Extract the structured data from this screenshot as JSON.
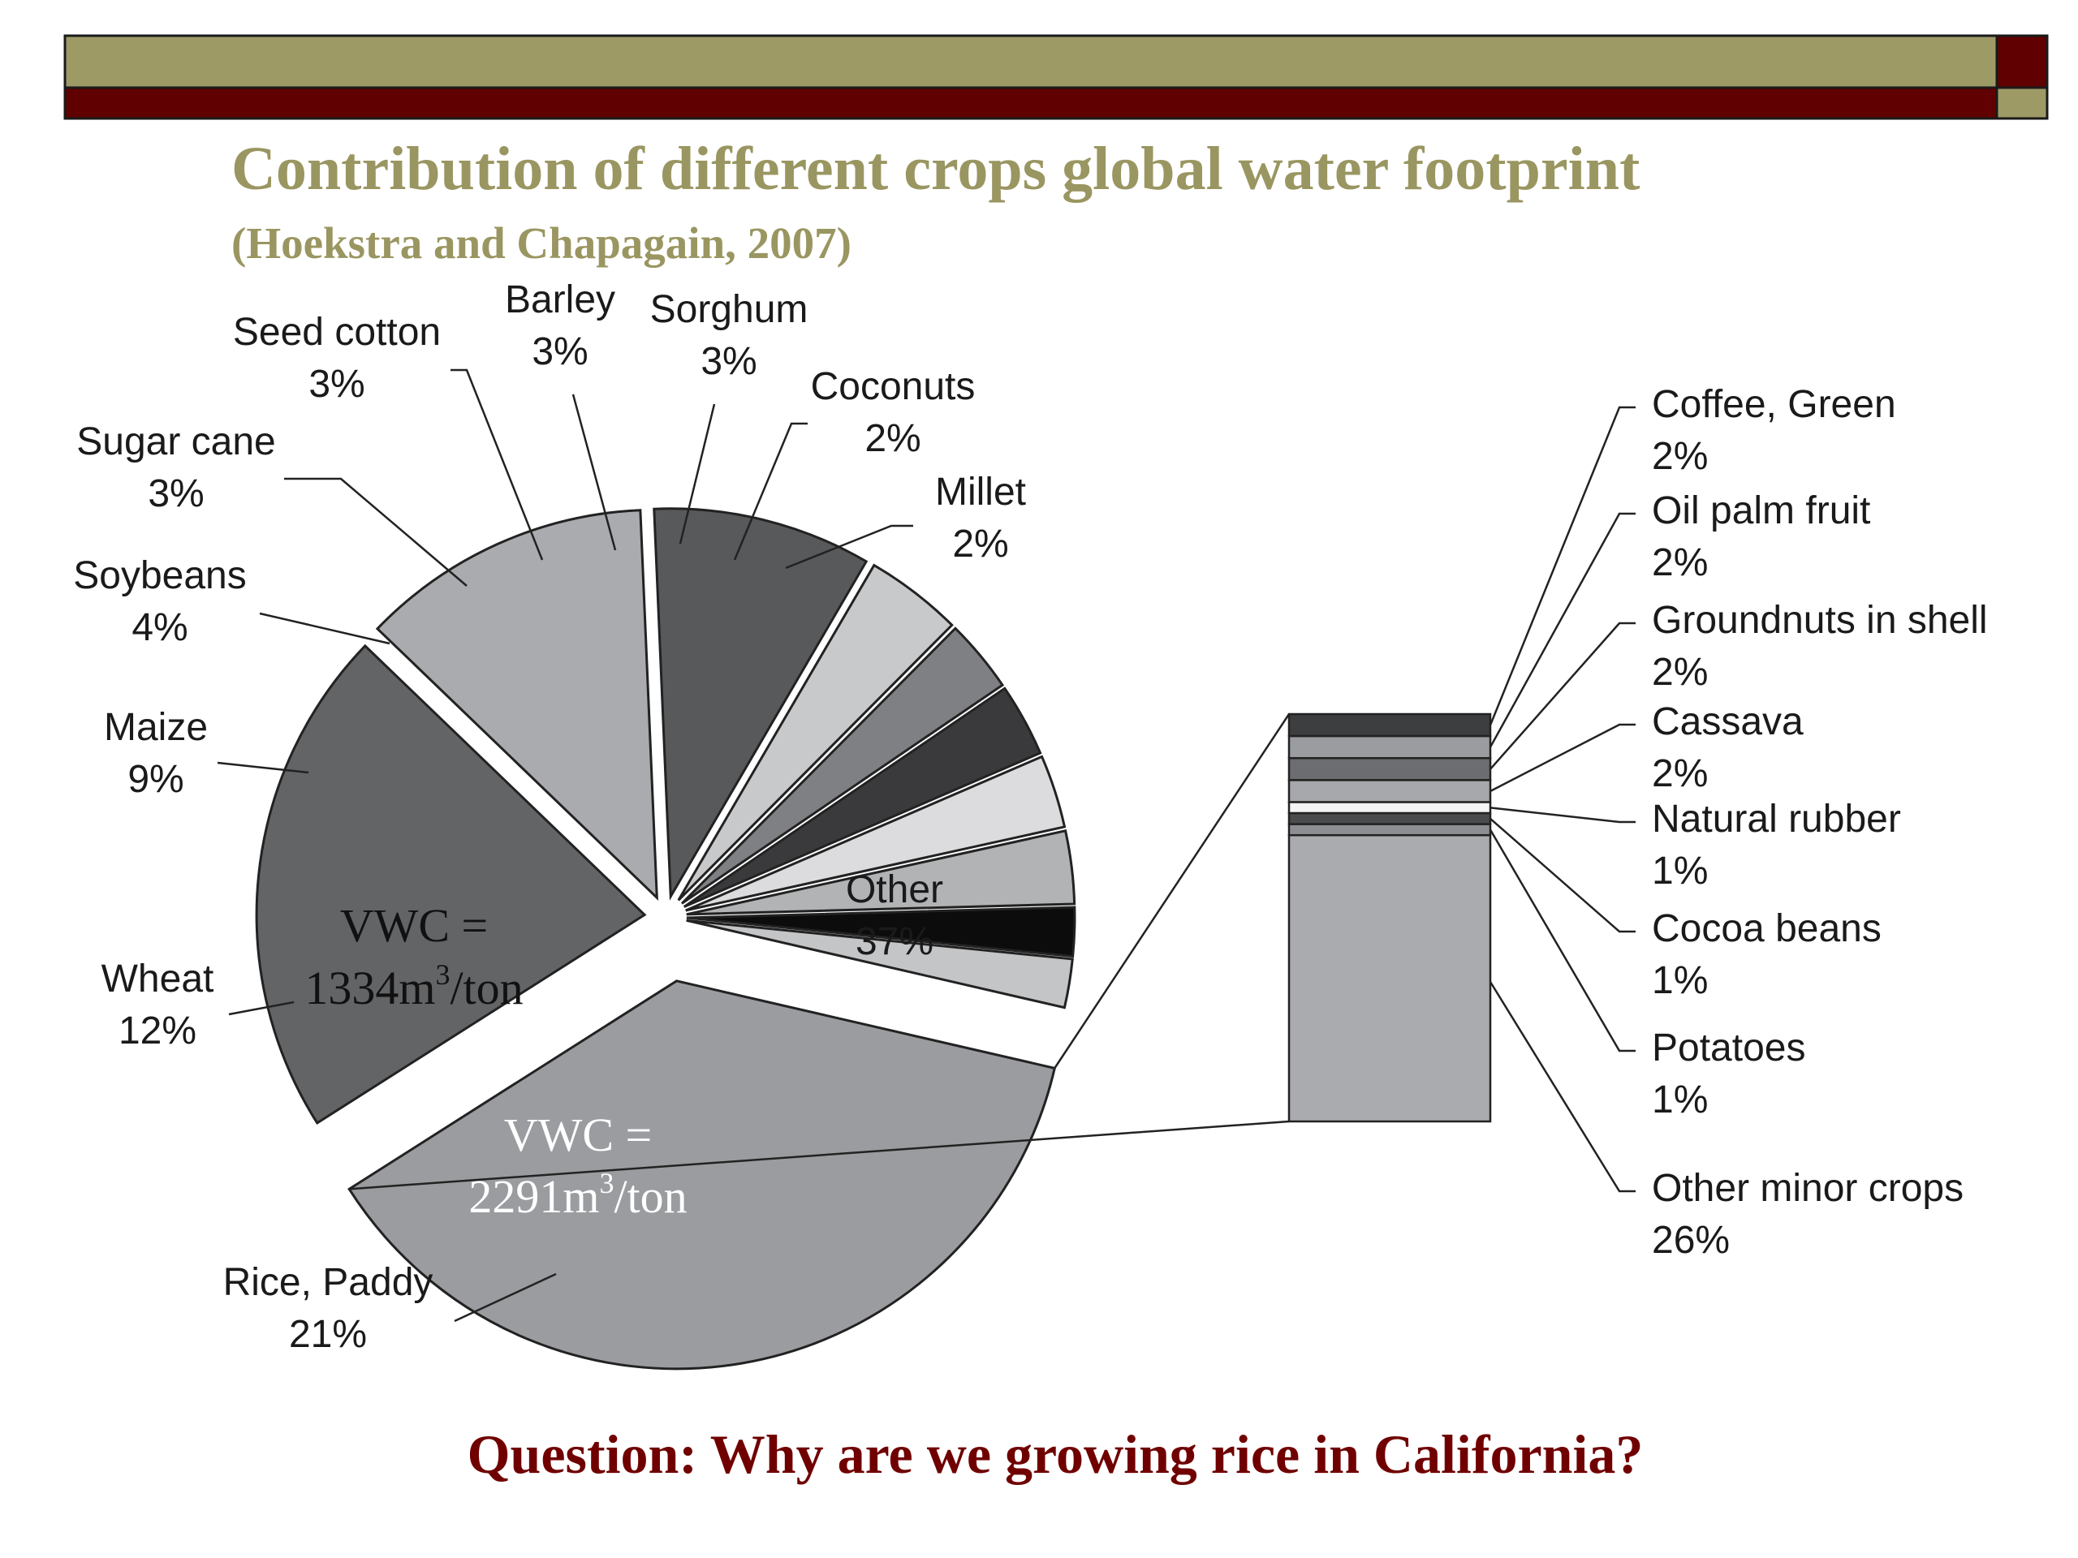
{
  "slide": {
    "title": "Contribution of different crops global water footprint",
    "subtitle": "(Hoekstra and Chapagain, 2007)",
    "question": "Question: Why are we growing rice in California?",
    "colors": {
      "title": "#9a9661",
      "band_top": "#9e9a66",
      "band_bottom": "#600000",
      "question": "#700000"
    }
  },
  "chart_data": {
    "type": "pie",
    "title": "",
    "slices": [
      {
        "label": "Other",
        "value_label": "37%",
        "value": 37,
        "color": "#9a9c9f"
      },
      {
        "label": "Rice, Paddy",
        "value_label": "21%",
        "value": 21,
        "color": "#636466"
      },
      {
        "label": "Wheat",
        "value_label": "12%",
        "value": 12,
        "color": "#a9abae"
      },
      {
        "label": "Maize",
        "value_label": "9%",
        "value": 9,
        "color": "#58595b"
      },
      {
        "label": "Soybeans",
        "value_label": "4%",
        "value": 4,
        "color": "#c8c9cb"
      },
      {
        "label": "Sugar cane",
        "value_label": "3%",
        "value": 3,
        "color": "#7e8083"
      },
      {
        "label": "Seed cotton",
        "value_label": "3%",
        "value": 3,
        "color": "#3a3a3c"
      },
      {
        "label": "Barley",
        "value_label": "3%",
        "value": 3,
        "color": "#dcdcde"
      },
      {
        "label": "Sorghum",
        "value_label": "3%",
        "value": 3,
        "color": "#b1b3b5"
      },
      {
        "label": "Coconuts",
        "value_label": "2%",
        "value": 2,
        "color": "#0c0c0c"
      },
      {
        "label": "Millet",
        "value_label": "2%",
        "value": 2,
        "color": "#c4c5c7"
      }
    ],
    "breakdown": {
      "of": "Other",
      "items": [
        {
          "label": "Coffee, Green",
          "value_label": "2%",
          "value": 2,
          "color": "#3d3e40"
        },
        {
          "label": "Oil palm fruit",
          "value_label": "2%",
          "value": 2,
          "color": "#9a9c9f"
        },
        {
          "label": "Groundnuts in shell",
          "value_label": "2%",
          "value": 2,
          "color": "#6c6d70"
        },
        {
          "label": "Cassava",
          "value_label": "2%",
          "value": 2,
          "color": "#a6a8ab"
        },
        {
          "label": "Natural rubber",
          "value_label": "1%",
          "value": 1,
          "color": "#f4f4f4"
        },
        {
          "label": "Cocoa beans",
          "value_label": "1%",
          "value": 1,
          "color": "#4a4b4d"
        },
        {
          "label": "Potatoes",
          "value_label": "1%",
          "value": 1,
          "color": "#8c8e91"
        },
        {
          "label": "Other minor crops",
          "value_label": "26%",
          "value": 26,
          "color": "#a9abae"
        }
      ]
    },
    "annotations": [
      {
        "for": "Wheat",
        "line1": "VWC =",
        "line2_value": "1334m",
        "line2_sup": "3",
        "line2_unit": "/ton"
      },
      {
        "for": "Rice, Paddy",
        "line1": "VWC  =",
        "line2_value": "2291m",
        "line2_sup": "3",
        "line2_unit": "/ton"
      }
    ]
  }
}
